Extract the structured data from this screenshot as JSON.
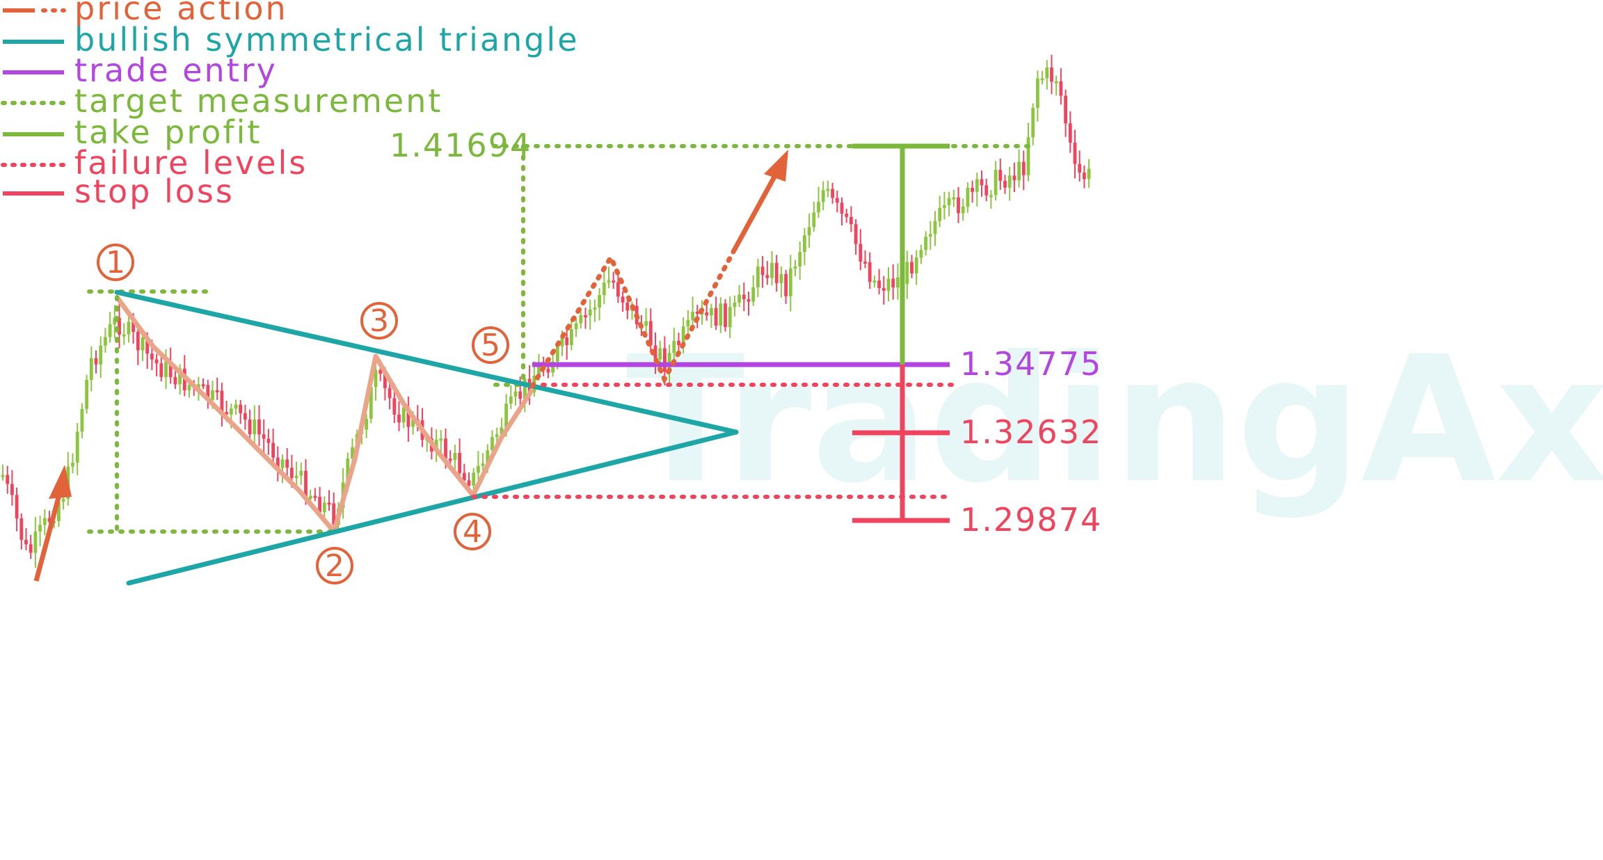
{
  "colors": {
    "price_action": "#e2623a",
    "triangle": "#1ea6a6",
    "trade_entry": "#b345e0",
    "target": "#7cb83c",
    "failure": "#f0435d",
    "candle_up": "#8cc63f",
    "candle_down": "#f0435d",
    "zigzag": "#eaa48a",
    "watermark": "#e7f6f6"
  },
  "watermark": "TradingAxe",
  "chart_data": {
    "type": "candlestick",
    "title": "",
    "legend": [
      {
        "label": "price action",
        "style": "dash-dot",
        "color": "#e2623a"
      },
      {
        "label": "bullish symmetrical triangle",
        "style": "solid",
        "color": "#1ea6a6"
      },
      {
        "label": "trade entry",
        "style": "solid",
        "color": "#b345e0"
      },
      {
        "label": "target measurement",
        "style": "dotted",
        "color": "#7cb83c"
      },
      {
        "label": "take profit",
        "style": "solid",
        "color": "#7cb83c"
      },
      {
        "label": "failure levels",
        "style": "dotted",
        "color": "#f0435d"
      },
      {
        "label": "stop loss",
        "style": "solid",
        "color": "#f0435d"
      }
    ],
    "legend_position": "top-left",
    "price_levels": [
      {
        "name": "take profit",
        "value": "1.41694",
        "price": 1.41694
      },
      {
        "name": "trade entry",
        "value": "1.34775",
        "price": 1.34775
      },
      {
        "name": "stop loss 1",
        "value": "1.32632",
        "price": 1.32632
      },
      {
        "name": "stop loss 2",
        "value": "1.29874",
        "price": 1.29874
      }
    ],
    "pattern_points": [
      "1",
      "2",
      "3",
      "4",
      "5"
    ],
    "y_range": [
      1.23,
      1.49
    ],
    "grid": false
  }
}
